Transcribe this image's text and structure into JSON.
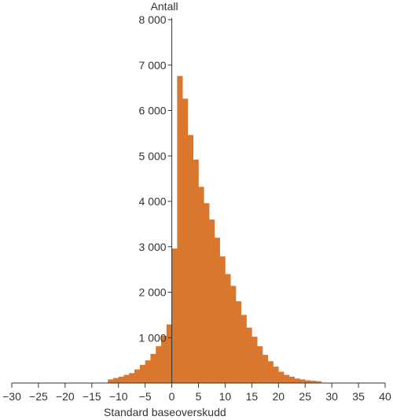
{
  "chart_data": {
    "type": "bar",
    "title": "",
    "xlabel": "Standard baseoverskudd",
    "ylabel": "Antall",
    "xlim": [
      -30,
      40
    ],
    "ylim": [
      0,
      8000
    ],
    "x_ticks": [
      -30,
      -25,
      -20,
      -15,
      -10,
      -5,
      0,
      5,
      10,
      15,
      20,
      25,
      30,
      35,
      40
    ],
    "x_tick_labels": [
      "−30",
      "−25",
      "−20",
      "−15",
      "−10",
      "−5",
      "0",
      "5",
      "10",
      "15",
      "20",
      "25",
      "30",
      "35",
      "40"
    ],
    "y_ticks": [
      1000,
      2000,
      3000,
      4000,
      5000,
      6000,
      7000,
      8000
    ],
    "y_tick_labels": [
      "1 000",
      "2 000",
      "3 000",
      "4 000",
      "5 000",
      "6 000",
      "7 000",
      "8 000"
    ],
    "bin_width": 1,
    "bin_starts": [
      -12,
      -11,
      -10,
      -9,
      -8,
      -7,
      -6,
      -5,
      -4,
      -3,
      -2,
      -1,
      0,
      1,
      2,
      3,
      4,
      5,
      6,
      7,
      8,
      9,
      10,
      11,
      12,
      13,
      14,
      15,
      16,
      17,
      18,
      19,
      20,
      21,
      22,
      23,
      24,
      25,
      26,
      27
    ],
    "values": [
      80,
      110,
      140,
      180,
      220,
      300,
      400,
      500,
      640,
      810,
      1040,
      1290,
      2960,
      6760,
      6260,
      5460,
      4920,
      4320,
      3960,
      3600,
      3200,
      2790,
      2400,
      2140,
      1800,
      1500,
      1220,
      1020,
      810,
      620,
      480,
      360,
      250,
      180,
      140,
      100,
      80,
      60,
      50,
      40
    ],
    "grid": false,
    "legend": "none",
    "colors": {
      "bar": "#d9772e",
      "axis": "#333333",
      "text": "#333333"
    }
  }
}
